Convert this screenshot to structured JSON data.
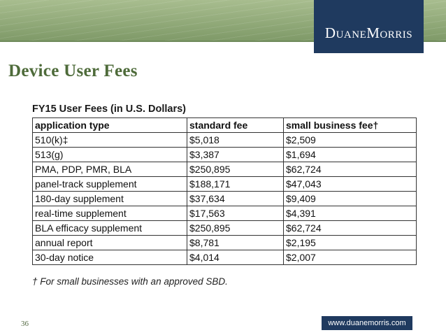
{
  "header": {
    "logo_text": "DuaneMorris",
    "colors": {
      "band": "#8fa878",
      "logo_bg": "#1f3a5f",
      "title": "#4e6b3a"
    }
  },
  "slide": {
    "title": "Device User Fees",
    "table_caption": "FY15 User Fees (in U.S. Dollars)",
    "columns": [
      "application type",
      "standard fee",
      "small business fee†"
    ],
    "rows": [
      [
        "510(k)‡",
        "$5,018",
        "$2,509"
      ],
      [
        "513(g)",
        "$3,387",
        "$1,694"
      ],
      [
        "PMA, PDP, PMR, BLA",
        "$250,895",
        "$62,724"
      ],
      [
        "panel-track supplement",
        "$188,171",
        "$47,043"
      ],
      [
        "180-day supplement",
        "$37,634",
        "$9,409"
      ],
      [
        "real-time supplement",
        "$17,563",
        "$4,391"
      ],
      [
        "BLA efficacy supplement",
        "$250,895",
        "$62,724"
      ],
      [
        "annual report",
        "$8,781",
        "$2,195"
      ],
      [
        "30-day notice",
        "$4,014",
        "$2,007"
      ]
    ],
    "footnote": "† For small businesses with an approved SBD."
  },
  "footer": {
    "page_number": "36",
    "url": "www.duanemorris.com"
  }
}
